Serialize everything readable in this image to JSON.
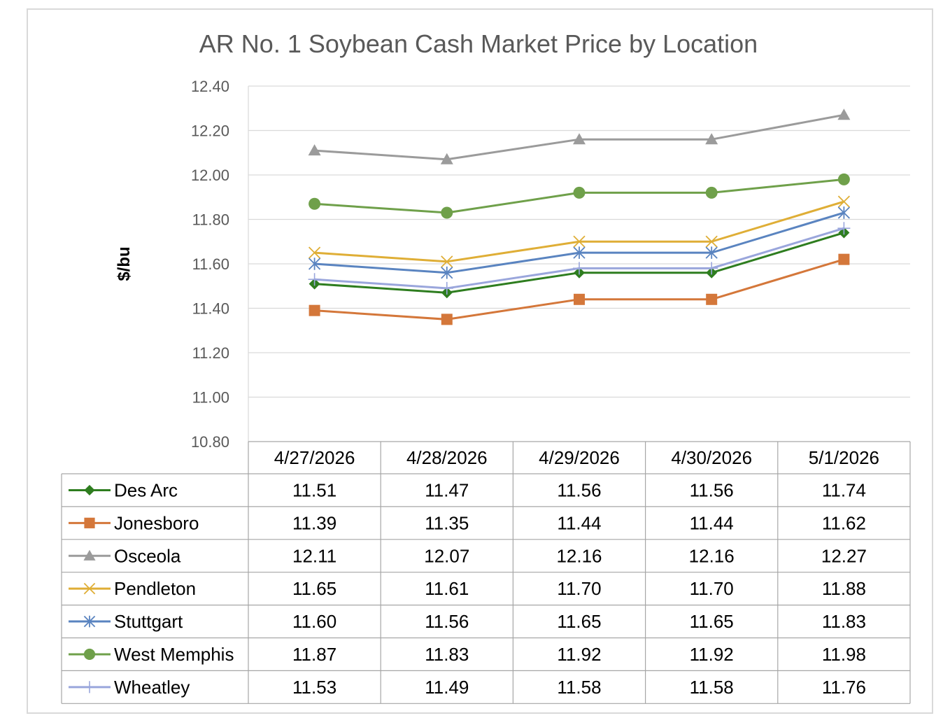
{
  "chart_data": {
    "type": "line",
    "title": "AR No. 1 Soybean Cash Market Price by Location",
    "ylabel": "$/bu",
    "xlabel": "",
    "ylim": [
      10.8,
      12.4
    ],
    "yticks": [
      "10.80",
      "11.00",
      "11.20",
      "11.40",
      "11.60",
      "11.80",
      "12.00",
      "12.20",
      "12.40"
    ],
    "categories": [
      "4/27/2026",
      "4/28/2026",
      "4/29/2026",
      "4/30/2026",
      "5/1/2026"
    ],
    "grid": true,
    "legend_placement": "data-table",
    "series": [
      {
        "name": "Des Arc",
        "color": "#2e7d1f",
        "marker": "diamond",
        "values": [
          11.51,
          11.47,
          11.56,
          11.56,
          11.74
        ],
        "labels": [
          "11.51",
          "11.47",
          "11.56",
          "11.56",
          "11.74"
        ]
      },
      {
        "name": "Jonesboro",
        "color": "#d4773a",
        "marker": "square",
        "values": [
          11.39,
          11.35,
          11.44,
          11.44,
          11.62
        ],
        "labels": [
          "11.39",
          "11.35",
          "11.44",
          "11.44",
          "11.62"
        ]
      },
      {
        "name": "Osceola",
        "color": "#9b9b9b",
        "marker": "triangle",
        "values": [
          12.11,
          12.07,
          12.16,
          12.16,
          12.27
        ],
        "labels": [
          "12.11",
          "12.07",
          "12.16",
          "12.16",
          "12.27"
        ]
      },
      {
        "name": "Pendleton",
        "color": "#dfae36",
        "marker": "x",
        "values": [
          11.65,
          11.61,
          11.7,
          11.7,
          11.88
        ],
        "labels": [
          "11.65",
          "11.61",
          "11.70",
          "11.70",
          "11.88"
        ]
      },
      {
        "name": "Stuttgart",
        "color": "#5a84c0",
        "marker": "star",
        "values": [
          11.6,
          11.56,
          11.65,
          11.65,
          11.83
        ],
        "labels": [
          "11.60",
          "11.56",
          "11.65",
          "11.65",
          "11.83"
        ]
      },
      {
        "name": "West Memphis",
        "color": "#6fa04a",
        "marker": "circle",
        "values": [
          11.87,
          11.83,
          11.92,
          11.92,
          11.98
        ],
        "labels": [
          "11.87",
          "11.83",
          "11.92",
          "11.92",
          "11.98"
        ]
      },
      {
        "name": "Wheatley",
        "color": "#9aa6dc",
        "marker": "plus",
        "values": [
          11.53,
          11.49,
          11.58,
          11.58,
          11.76
        ],
        "labels": [
          "11.53",
          "11.49",
          "11.58",
          "11.58",
          "11.76"
        ]
      }
    ]
  }
}
